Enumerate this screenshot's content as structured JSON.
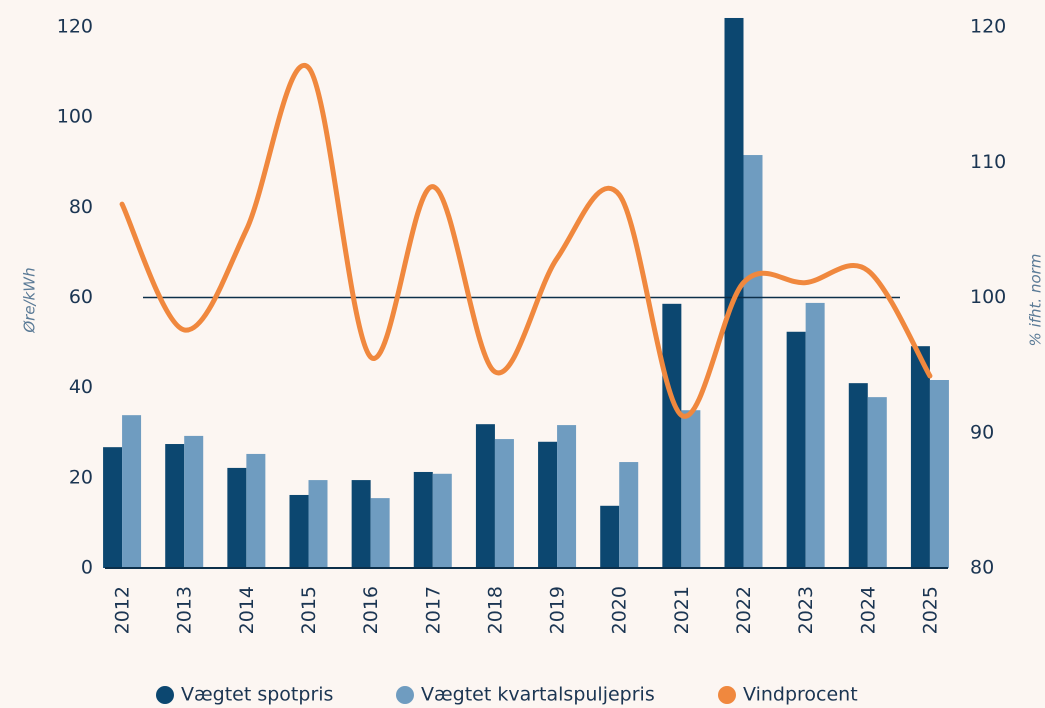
{
  "chart_data": {
    "type": "bar",
    "categories": [
      "2012",
      "2013",
      "2014",
      "2015",
      "2016",
      "2017",
      "2018",
      "2019",
      "2020",
      "2021",
      "2022",
      "2023",
      "2024",
      "2025"
    ],
    "series": [
      {
        "name": "Vægtet spotpris",
        "color": "#0c4770",
        "values": [
          26.8,
          27.5,
          22.2,
          16.2,
          19.5,
          21.3,
          31.9,
          28.0,
          13.8,
          58.6,
          122.0,
          52.4,
          41.0,
          49.2
        ]
      },
      {
        "name": "Vægtet kvartalspuljepris",
        "color": "#6f9cc0",
        "values": [
          33.9,
          29.3,
          25.3,
          19.5,
          15.5,
          20.9,
          28.6,
          31.7,
          23.5,
          35.0,
          91.6,
          58.8,
          37.9,
          41.7
        ]
      },
      {
        "name": "Vindprocent",
        "color": "#f0883e",
        "type": "line",
        "axis": "y2",
        "values": [
          106.9,
          97.6,
          105.0,
          117.0,
          95.6,
          108.2,
          94.5,
          102.9,
          107.6,
          91.3,
          101.1,
          101.1,
          102.0,
          94.2
        ]
      }
    ],
    "ylabel": "Øre/kWh",
    "y2label": "% ifht. norm",
    "ylim": [
      0,
      120
    ],
    "yticks": [
      0,
      20,
      40,
      60,
      80,
      100,
      120
    ],
    "y2lim": [
      80,
      120
    ],
    "y2ticks": [
      80,
      90,
      100,
      110,
      120
    ],
    "reference_line": {
      "axis": "y2",
      "value": 100,
      "color": "#0c2f4a"
    }
  }
}
